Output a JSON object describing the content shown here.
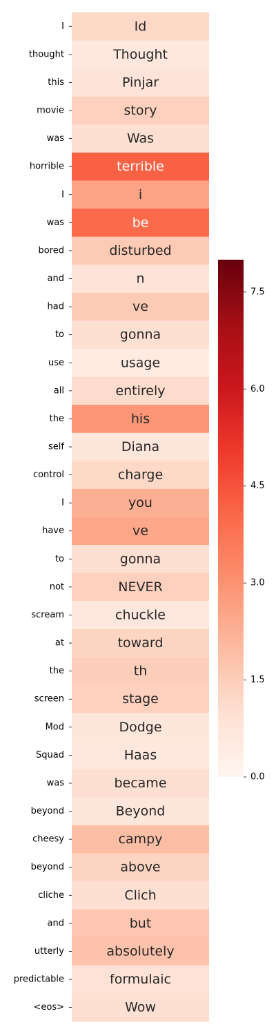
{
  "chart_data": {
    "type": "heatmap",
    "title": "",
    "xlabel": "",
    "ylabel": "",
    "row_labels": [
      "I",
      "thought",
      "this",
      "movie",
      "was",
      "horrible",
      "I",
      "was",
      "bored",
      "and",
      "had",
      "to",
      "use",
      "all",
      "the",
      "self",
      "control",
      "I",
      "have",
      "to",
      "not",
      "scream",
      "at",
      "the",
      "screen",
      "Mod",
      "Squad",
      "was",
      "beyond",
      "cheesy",
      "beyond",
      "cliche",
      "and",
      "utterly",
      "predictable",
      "<eos>"
    ],
    "cell_text": [
      "Id",
      "Thought",
      "Pinjar",
      "story",
      "Was",
      "terrible",
      "i",
      "be",
      "disturbed",
      "n",
      "ve",
      "gonna",
      "usage",
      "entirely",
      "his",
      "Diana",
      "charge",
      "you",
      "ve",
      "gonna",
      "NEVER",
      "chuckle",
      "toward",
      "th",
      "stage",
      "Dodge",
      "Haas",
      "became",
      "Beyond",
      "campy",
      "above",
      "Clich",
      "but",
      "absolutely",
      "formulaic",
      "Wow"
    ],
    "values": [
      1.2,
      0.6,
      0.8,
      1.4,
      1.0,
      4.2,
      2.6,
      4.0,
      1.6,
      0.8,
      1.6,
      1.0,
      0.5,
      1.1,
      2.9,
      0.7,
      1.2,
      2.3,
      2.5,
      1.0,
      1.4,
      0.6,
      1.3,
      1.5,
      1.4,
      0.7,
      0.6,
      1.0,
      0.7,
      1.9,
      1.3,
      1.0,
      1.7,
      1.8,
      0.9,
      1.0
    ],
    "colorbar": {
      "min": 0.0,
      "max": 8.0,
      "ticks": [
        "0.0",
        "1.5",
        "3.0",
        "4.5",
        "6.0",
        "7.5"
      ],
      "tick_values": [
        0.0,
        1.5,
        3.0,
        4.5,
        6.0,
        7.5
      ],
      "colormap": "Reds"
    },
    "colors": {
      "low": "#fff5f0",
      "high": "#67000d"
    }
  }
}
